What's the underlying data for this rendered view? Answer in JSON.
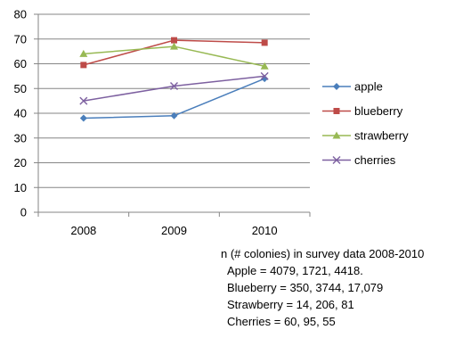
{
  "chart_data": {
    "type": "line",
    "x": [
      "2008",
      "2009",
      "2010"
    ],
    "ylim": [
      0,
      80
    ],
    "yticks": [
      0,
      10,
      20,
      30,
      40,
      50,
      60,
      70,
      80
    ],
    "grid": "horizontal",
    "legend_position": "right",
    "series": [
      {
        "name": "apple",
        "values": [
          38,
          39,
          54
        ],
        "color": "#4a7ebb",
        "marker": "diamond"
      },
      {
        "name": "blueberry",
        "values": [
          59.5,
          69.5,
          68.5
        ],
        "color": "#be4b48",
        "marker": "square"
      },
      {
        "name": "strawberry",
        "values": [
          64,
          67,
          59
        ],
        "color": "#98b954",
        "marker": "triangle"
      },
      {
        "name": "cherries",
        "values": [
          45,
          51,
          55
        ],
        "color": "#7d60a0",
        "marker": "x"
      }
    ]
  },
  "note": {
    "title": "n (# colonies) in survey data 2008-2010",
    "lines": [
      "Apple = 4079, 1721, 4418.",
      "Blueberry = 350, 3744, 17,079",
      "Strawberry = 14, 206, 81",
      "Cherries = 60, 95, 55"
    ]
  }
}
